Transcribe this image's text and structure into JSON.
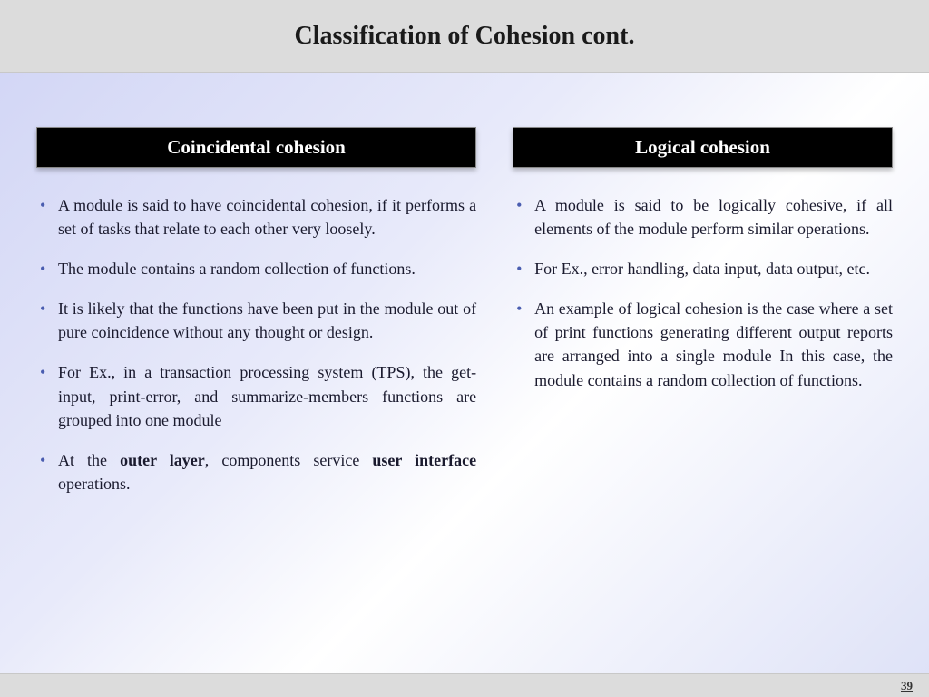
{
  "title": "Classification of Cohesion cont.",
  "pageNumber": "39",
  "left": {
    "heading": "Coincidental cohesion",
    "items": [
      "A module is said to have coincidental cohesion, if it performs a set of tasks that relate to each other very loosely.",
      "The module contains a random collection of functions.",
      "It is likely that the functions have been put in the module out of pure coincidence without any thought or design.",
      "For Ex., in a transaction processing system (TPS), the get-input, print-error, and summarize-members functions are grouped into one module"
    ],
    "item5_pre": "At the ",
    "item5_b1": "outer layer",
    "item5_mid": ", components service ",
    "item5_b2": "user interface",
    "item5_post": " operations."
  },
  "right": {
    "heading": "Logical cohesion",
    "items": [
      "A module is said to be logically cohesive, if all elements of the module perform similar operations.",
      "For Ex., error handling, data input, data output, etc.",
      "An example of logical cohesion is the case where a set of print functions generating different output reports are arranged into a single module In this case, the module contains a random collection of functions."
    ]
  }
}
